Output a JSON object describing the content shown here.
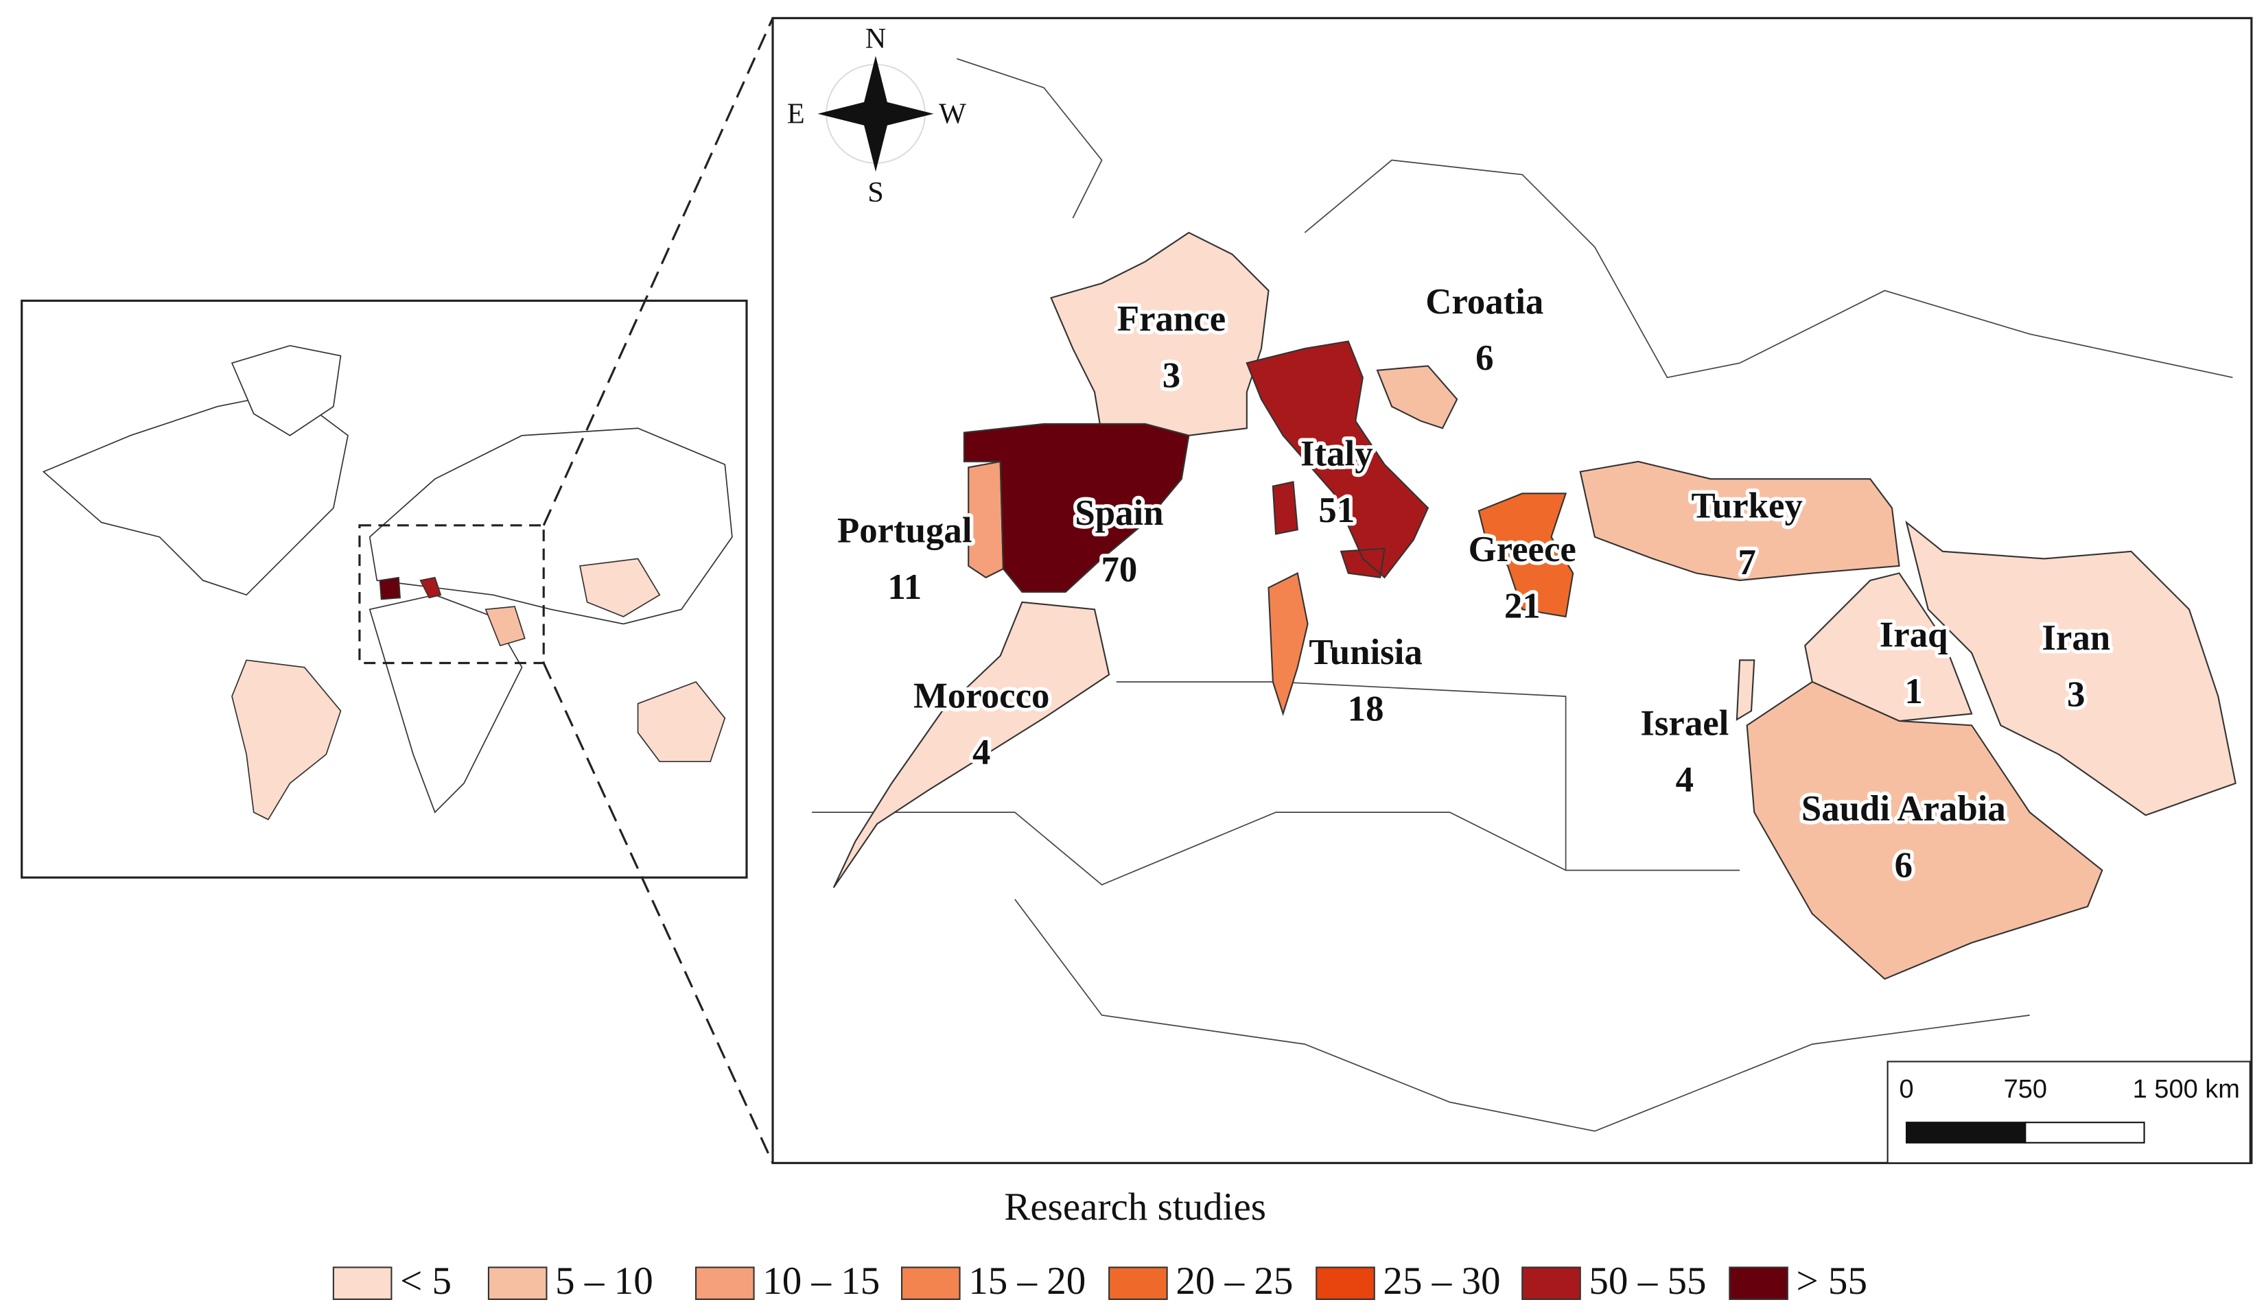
{
  "map": {
    "countries": [
      {
        "name": "France",
        "value": 3,
        "color": "#fcdccc"
      },
      {
        "name": "Croatia",
        "value": 6,
        "color": "#f7bfa2"
      },
      {
        "name": "Italy",
        "value": 51,
        "color": "#a8191b"
      },
      {
        "name": "Portugal",
        "value": 11,
        "color": "#f5a07a"
      },
      {
        "name": "Spain",
        "value": 70,
        "color": "#67000d"
      },
      {
        "name": "Greece",
        "value": 21,
        "color": "#ef6a2a"
      },
      {
        "name": "Turkey",
        "value": 7,
        "color": "#f7bfa2"
      },
      {
        "name": "Iraq",
        "value": 1,
        "color": "#fcdccc"
      },
      {
        "name": "Iran",
        "value": 3,
        "color": "#fcdccc"
      },
      {
        "name": "Tunisia",
        "value": 18,
        "color": "#f3844f"
      },
      {
        "name": "Morocco",
        "value": 4,
        "color": "#fcdccc"
      },
      {
        "name": "Israel",
        "value": 4,
        "color": "#fcdccc"
      },
      {
        "name": "Saudi Arabia",
        "value": 6,
        "color": "#f7bfa2"
      }
    ],
    "legend": {
      "title": "Research studies",
      "classes": [
        {
          "label": "< 5",
          "color": "#fcdccc"
        },
        {
          "label": "5 – 10",
          "color": "#f7bfa2"
        },
        {
          "label": "10 – 15",
          "color": "#f5a07a"
        },
        {
          "label": "15 – 20",
          "color": "#f3844f"
        },
        {
          "label": "20 – 25",
          "color": "#ef6a2a"
        },
        {
          "label": "25 – 30",
          "color": "#e8440e"
        },
        {
          "label": "50 – 55",
          "color": "#a8191b"
        },
        {
          "label": "> 55",
          "color": "#67000d"
        }
      ]
    },
    "compass": {
      "north": "N",
      "south": "S",
      "east": "E",
      "west": "W"
    },
    "scale_bar": {
      "labels": [
        "0",
        "750",
        "1 500 km"
      ]
    }
  }
}
